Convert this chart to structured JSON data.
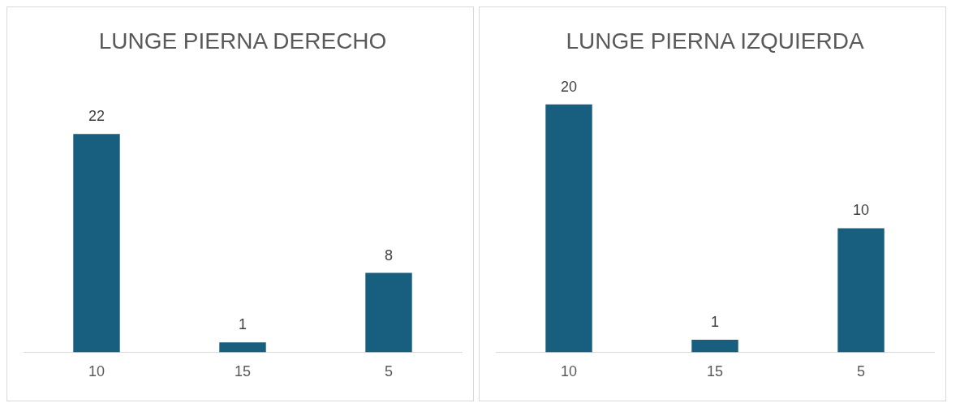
{
  "chart_data": [
    {
      "type": "bar",
      "title": "LUNGE PIERNA DERECHO",
      "categories": [
        "10",
        "15",
        "5"
      ],
      "values": [
        22,
        1,
        8
      ],
      "color": "#175e7f",
      "data_labels": true,
      "grid": false,
      "legend": false
    },
    {
      "type": "bar",
      "title": "LUNGE PIERNA IZQUIERDA",
      "categories": [
        "10",
        "15",
        "5"
      ],
      "values": [
        20,
        1,
        10
      ],
      "color": "#175e7f",
      "data_labels": true,
      "grid": false,
      "legend": false
    }
  ]
}
